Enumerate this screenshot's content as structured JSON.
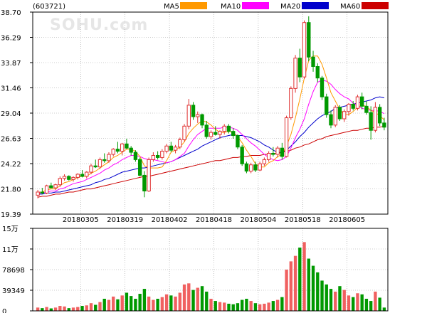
{
  "chart_data": [
    {
      "type": "candlestick",
      "code": "(603721)",
      "watermark": "SOHU.com",
      "y_ticks": [
        "38.70",
        "36.29",
        "33.87",
        "31.46",
        "29.04",
        "26.63",
        "24.22",
        "21.80",
        "19.39"
      ],
      "ylim": [
        19.39,
        38.7
      ],
      "x_ticks": [
        "20180305",
        "20180319",
        "20180402",
        "20180418",
        "20180504",
        "20180518",
        "20180605"
      ],
      "legend": [
        {
          "name": "MA5",
          "color": "#ff9900"
        },
        {
          "name": "MA10",
          "color": "#ff00ff"
        },
        {
          "name": "MA20",
          "color": "#0000cc"
        },
        {
          "name": "MA60",
          "color": "#cc0000"
        }
      ],
      "colors": {
        "up": "#e03030",
        "down": "#009900",
        "grid": "#999999",
        "axis": "#000000"
      },
      "ohlc": [
        [
          21.2,
          21.7,
          20.9,
          21.5
        ],
        [
          21.5,
          21.9,
          21.3,
          21.4
        ],
        [
          21.4,
          22.2,
          21.3,
          22.1
        ],
        [
          22.1,
          22.4,
          21.9,
          21.9
        ],
        [
          21.9,
          22.3,
          21.7,
          22.2
        ],
        [
          22.2,
          23.0,
          22.0,
          22.8
        ],
        [
          22.8,
          23.2,
          22.6,
          23.0
        ],
        [
          23.0,
          23.1,
          22.6,
          22.7
        ],
        [
          22.7,
          23.0,
          22.5,
          22.9
        ],
        [
          22.9,
          23.3,
          22.7,
          23.2
        ],
        [
          23.2,
          23.6,
          22.9,
          23.0
        ],
        [
          23.0,
          23.5,
          22.8,
          23.4
        ],
        [
          23.4,
          24.2,
          23.2,
          24.0
        ],
        [
          24.0,
          24.6,
          23.8,
          23.9
        ],
        [
          23.9,
          24.8,
          23.7,
          24.6
        ],
        [
          24.6,
          25.2,
          24.3,
          24.5
        ],
        [
          24.5,
          25.3,
          24.3,
          25.1
        ],
        [
          25.1,
          25.7,
          24.9,
          25.6
        ],
        [
          25.6,
          26.3,
          25.2,
          25.4
        ],
        [
          25.4,
          26.2,
          25.0,
          26.1
        ],
        [
          26.1,
          26.6,
          25.6,
          25.7
        ],
        [
          25.7,
          25.9,
          25.0,
          25.3
        ],
        [
          25.3,
          25.5,
          24.4,
          24.6
        ],
        [
          24.6,
          24.8,
          23.0,
          23.1
        ],
        [
          23.1,
          23.5,
          21.0,
          21.6
        ],
        [
          21.6,
          24.8,
          21.5,
          24.6
        ],
        [
          24.6,
          25.3,
          24.4,
          25.0
        ],
        [
          25.0,
          25.4,
          24.6,
          24.8
        ],
        [
          24.8,
          25.6,
          24.6,
          25.4
        ],
        [
          25.4,
          26.1,
          25.2,
          25.9
        ],
        [
          25.9,
          26.3,
          25.3,
          25.5
        ],
        [
          25.5,
          26.0,
          25.2,
          25.8
        ],
        [
          25.8,
          26.7,
          25.6,
          26.5
        ],
        [
          26.5,
          28.0,
          26.3,
          27.8
        ],
        [
          27.8,
          30.4,
          27.5,
          29.8
        ],
        [
          29.8,
          30.1,
          28.4,
          28.7
        ],
        [
          28.7,
          29.2,
          28.1,
          28.9
        ],
        [
          28.9,
          29.0,
          27.6,
          27.9
        ],
        [
          27.9,
          28.3,
          26.6,
          26.8
        ],
        [
          26.8,
          27.4,
          26.5,
          27.2
        ],
        [
          27.2,
          27.8,
          26.9,
          27.0
        ],
        [
          27.0,
          27.4,
          26.6,
          27.3
        ],
        [
          27.3,
          28.0,
          27.0,
          27.8
        ],
        [
          27.8,
          28.0,
          27.1,
          27.3
        ],
        [
          27.3,
          27.6,
          26.6,
          26.9
        ],
        [
          26.9,
          27.0,
          25.6,
          25.8
        ],
        [
          25.8,
          26.0,
          24.0,
          24.2
        ],
        [
          24.2,
          24.4,
          23.3,
          23.5
        ],
        [
          23.5,
          24.3,
          23.3,
          24.1
        ],
        [
          24.1,
          24.4,
          23.4,
          23.6
        ],
        [
          23.6,
          24.4,
          23.5,
          24.2
        ],
        [
          24.2,
          24.8,
          24.0,
          24.6
        ],
        [
          24.6,
          25.4,
          24.4,
          25.2
        ],
        [
          25.2,
          25.8,
          24.9,
          25.1
        ],
        [
          25.1,
          25.9,
          24.8,
          25.7
        ],
        [
          25.7,
          26.2,
          24.6,
          24.9
        ],
        [
          24.9,
          28.8,
          24.8,
          28.6
        ],
        [
          28.6,
          31.6,
          28.4,
          31.4
        ],
        [
          31.4,
          34.6,
          31.0,
          34.3
        ],
        [
          34.3,
          35.2,
          32.0,
          32.5
        ],
        [
          32.5,
          37.9,
          32.3,
          37.7
        ],
        [
          37.7,
          38.3,
          34.0,
          34.4
        ],
        [
          34.4,
          35.0,
          33.0,
          33.5
        ],
        [
          33.5,
          33.8,
          32.0,
          32.4
        ],
        [
          32.4,
          32.6,
          30.3,
          30.6
        ],
        [
          30.6,
          30.9,
          28.6,
          28.9
        ],
        [
          28.9,
          29.3,
          27.6,
          27.9
        ],
        [
          27.9,
          29.8,
          27.7,
          29.6
        ],
        [
          29.6,
          29.8,
          28.3,
          28.5
        ],
        [
          28.5,
          29.4,
          28.2,
          29.2
        ],
        [
          29.2,
          30.0,
          28.8,
          29.9
        ],
        [
          29.9,
          30.2,
          29.3,
          29.5
        ],
        [
          29.5,
          30.8,
          29.3,
          30.6
        ],
        [
          30.6,
          31.0,
          29.4,
          29.7
        ],
        [
          29.7,
          30.2,
          28.9,
          29.1
        ],
        [
          29.1,
          29.7,
          26.5,
          27.4
        ],
        [
          27.4,
          30.1,
          27.2,
          29.6
        ],
        [
          29.6,
          29.9,
          27.8,
          28.1
        ],
        [
          28.1,
          28.6,
          27.4,
          27.7
        ]
      ],
      "ma5": [
        21.5,
        21.5,
        21.7,
        21.8,
        21.8,
        22.1,
        22.4,
        22.5,
        22.7,
        22.9,
        23.0,
        23.0,
        23.3,
        23.5,
        23.8,
        24.1,
        24.4,
        24.8,
        25.0,
        25.3,
        25.6,
        25.6,
        25.4,
        24.9,
        24.0,
        23.8,
        23.8,
        23.8,
        23.9,
        24.5,
        25.3,
        25.5,
        25.8,
        26.3,
        27.1,
        27.6,
        28.0,
        28.3,
        28.2,
        27.9,
        27.5,
        27.2,
        27.2,
        27.3,
        27.2,
        26.8,
        26.2,
        25.5,
        24.9,
        24.2,
        23.9,
        23.9,
        24.3,
        24.5,
        24.9,
        25.1,
        25.9,
        27.0,
        28.6,
        30.4,
        32.4,
        34.1,
        34.5,
        34.5,
        33.7,
        32.4,
        31.0,
        30.2,
        29.4,
        28.9,
        28.9,
        29.2,
        29.6,
        29.8,
        29.7,
        29.3,
        29.1,
        28.8,
        28.4
      ],
      "ma10": [
        21.4,
        21.4,
        21.5,
        21.6,
        21.6,
        21.8,
        21.9,
        22.1,
        22.3,
        22.4,
        22.5,
        22.7,
        22.9,
        23.1,
        23.3,
        23.6,
        23.8,
        24.1,
        24.3,
        24.6,
        24.8,
        25.0,
        25.0,
        24.9,
        24.7,
        24.6,
        24.6,
        24.5,
        24.4,
        24.3,
        24.4,
        24.6,
        24.9,
        25.2,
        25.9,
        26.5,
        27.0,
        27.3,
        27.6,
        27.6,
        27.6,
        27.6,
        27.7,
        27.7,
        27.6,
        27.4,
        27.0,
        26.6,
        26.2,
        25.9,
        25.5,
        25.1,
        24.8,
        24.6,
        24.5,
        24.6,
        24.9,
        25.7,
        26.7,
        27.5,
        28.5,
        29.9,
        31.1,
        32.0,
        32.2,
        32.1,
        31.8,
        31.3,
        30.9,
        30.6,
        30.4,
        30.0,
        29.7,
        29.5,
        29.4,
        29.3,
        29.3,
        29.2,
        29.0
      ],
      "ma20": [
        21.3,
        21.3,
        21.4,
        21.4,
        21.5,
        21.5,
        21.6,
        21.7,
        21.8,
        21.9,
        22.0,
        22.1,
        22.2,
        22.4,
        22.5,
        22.7,
        22.8,
        23.0,
        23.2,
        23.4,
        23.5,
        23.6,
        23.7,
        23.8,
        23.8,
        23.9,
        24.0,
        24.1,
        24.2,
        24.3,
        24.4,
        24.6,
        24.8,
        25.0,
        25.2,
        25.4,
        25.6,
        25.9,
        26.1,
        26.3,
        26.5,
        26.7,
        26.8,
        26.9,
        27.0,
        26.9,
        26.9,
        26.8,
        26.7,
        26.5,
        26.3,
        26.0,
        25.8,
        25.5,
        25.3,
        25.3,
        25.5,
        25.9,
        26.3,
        26.8,
        27.2,
        27.7,
        28.1,
        28.5,
        28.8,
        29.0,
        29.2,
        29.5,
        29.6,
        29.7,
        29.8,
        29.9,
        30.0,
        30.1,
        30.2,
        30.3,
        30.5,
        30.6,
        30.5
      ],
      "ma60": [
        21.0,
        21.1,
        21.1,
        21.2,
        21.3,
        21.3,
        21.4,
        21.5,
        21.5,
        21.6,
        21.7,
        21.8,
        21.8,
        21.9,
        22.0,
        22.1,
        22.2,
        22.3,
        22.4,
        22.5,
        22.6,
        22.7,
        22.8,
        22.9,
        23.0,
        23.0,
        23.1,
        23.2,
        23.3,
        23.4,
        23.5,
        23.6,
        23.7,
        23.8,
        23.9,
        24.0,
        24.1,
        24.2,
        24.3,
        24.4,
        24.5,
        24.5,
        24.6,
        24.7,
        24.8,
        24.8,
        24.9,
        24.9,
        25.0,
        25.0,
        25.0,
        25.1,
        25.1,
        25.2,
        25.2,
        25.3,
        25.4,
        25.5,
        25.7,
        25.8,
        26.0,
        26.1,
        26.3,
        26.5,
        26.6,
        26.8,
        26.9,
        27.0,
        27.1,
        27.2,
        27.3,
        27.4,
        27.4,
        27.5,
        27.6,
        27.6,
        27.7,
        27.7,
        27.8
      ]
    },
    {
      "type": "bar",
      "y_ticks": [
        "15万",
        "11万",
        "78698",
        "39349",
        "0"
      ],
      "ylim": [
        0,
        150000
      ],
      "volume": [
        6000,
        5000,
        7000,
        4500,
        6000,
        9000,
        8000,
        5000,
        6000,
        7000,
        9000,
        10000,
        14000,
        11000,
        16000,
        22000,
        20000,
        26000,
        21000,
        28000,
        33000,
        27000,
        22000,
        31000,
        40000,
        26000,
        20000,
        22000,
        25000,
        30000,
        28000,
        26000,
        33000,
        48000,
        50000,
        38000,
        42000,
        45000,
        35000,
        22000,
        18000,
        16000,
        15000,
        13000,
        12000,
        14000,
        20000,
        22000,
        18000,
        14000,
        12000,
        13000,
        15000,
        18000,
        20000,
        25000,
        75000,
        90000,
        100000,
        115000,
        125000,
        95000,
        82000,
        70000,
        55000,
        48000,
        40000,
        35000,
        45000,
        38000,
        28000,
        25000,
        32000,
        30000,
        22000,
        18000,
        35000,
        24000,
        6000
      ]
    }
  ]
}
